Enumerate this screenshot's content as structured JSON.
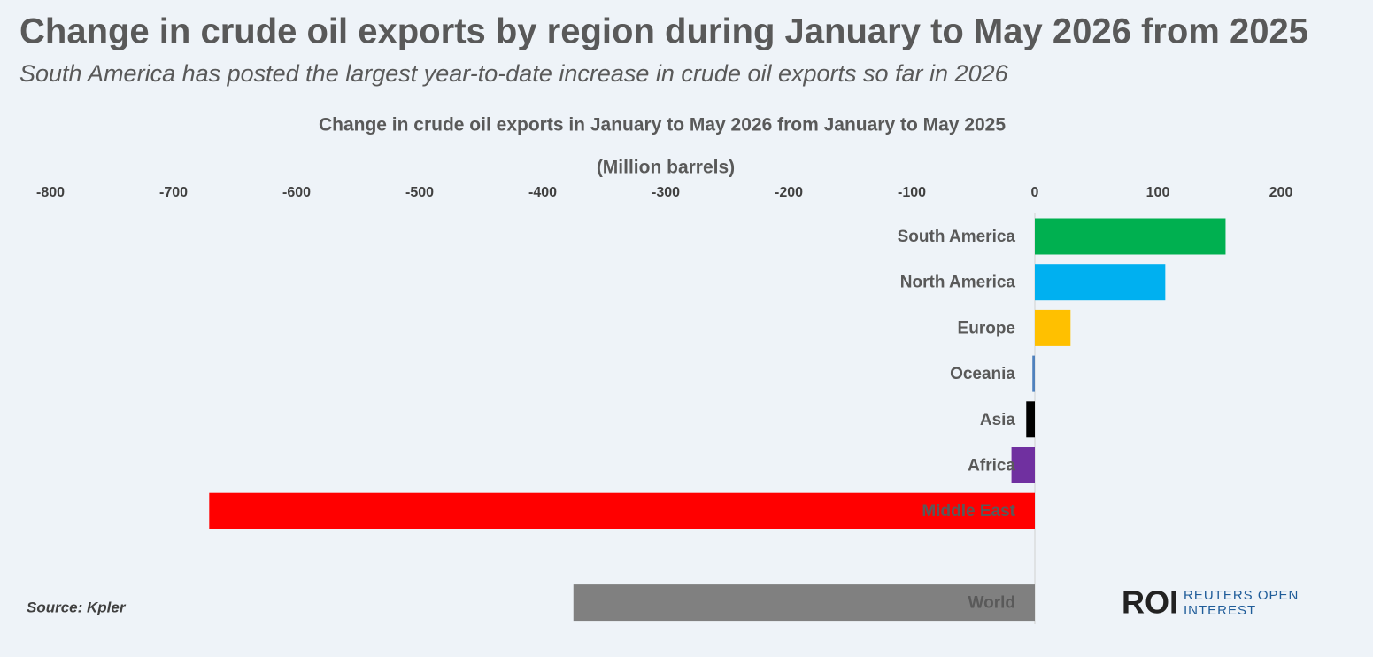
{
  "title": "Change in crude oil exports by region during January to May 2026 from 2025",
  "subtitle": "South America has posted the largest year-to-date increase in crude oil exports so far in 2026",
  "source": "Source:  Kpler",
  "logo": {
    "mark": "ROI",
    "lines": [
      "REUTERS OPEN",
      "INTEREST"
    ]
  },
  "chart_data": {
    "type": "hbar",
    "title": "Change in crude oil exports in January to May 2026 from January to May 2025",
    "x_label": "(Million barrels)",
    "categories": [
      "South America",
      "North America",
      "Europe",
      "Oceania",
      "Asia",
      "Africa",
      "Middle East",
      null,
      "World"
    ],
    "values": [
      155,
      106,
      29,
      -2,
      -7,
      -19,
      -671,
      null,
      -375
    ],
    "colors": [
      "#00b050",
      "#00b0f0",
      "#ffc000",
      "#4f81bd",
      "#000000",
      "#7030a0",
      "#ff0000",
      null,
      "#808080"
    ],
    "xlim": [
      -800,
      200
    ],
    "xticks": [
      -800,
      -700,
      -600,
      -500,
      -400,
      -300,
      -200,
      -100,
      0,
      100,
      200
    ],
    "grid": false
  }
}
